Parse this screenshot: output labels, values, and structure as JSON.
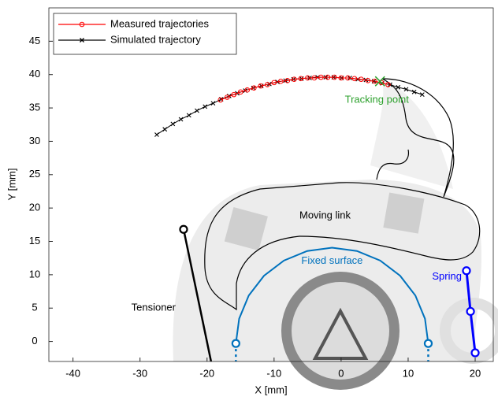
{
  "chart_data": {
    "type": "line",
    "xlabel": "X [mm]",
    "ylabel": "Y [mm]",
    "xlim": [
      -43.6,
      22.7
    ],
    "ylim": [
      -3,
      50
    ],
    "xticks": [
      -40,
      -30,
      -20,
      -10,
      0,
      10,
      20
    ],
    "yticks": [
      0,
      5,
      10,
      15,
      20,
      25,
      30,
      35,
      40,
      45
    ],
    "legend": "upper left",
    "series": [
      {
        "name": "Measured trajectories",
        "color": "#ff0000",
        "marker": "o",
        "x": [
          -18,
          -17,
          -16,
          -15,
          -14,
          -13,
          -12,
          -11,
          -10,
          -9,
          -8,
          -7,
          -6,
          -5,
          -4,
          -3,
          -2,
          -1,
          0,
          1,
          2,
          3,
          4,
          5,
          6,
          7
        ],
        "values": [
          36.2,
          36.6,
          37.0,
          37.4,
          37.7,
          38.0,
          38.3,
          38.5,
          38.8,
          39.0,
          39.1,
          39.3,
          39.4,
          39.5,
          39.5,
          39.6,
          39.6,
          39.6,
          39.5,
          39.5,
          39.4,
          39.3,
          39.1,
          39.0,
          38.8,
          38.5
        ]
      },
      {
        "name": "Simulated trajectory",
        "color": "#000000",
        "marker": "x",
        "x": [
          -27.5,
          -26.3,
          -25.1,
          -23.9,
          -22.7,
          -21.5,
          -20.3,
          -19.1,
          -17.9,
          -16.7,
          -15.5,
          -14.3,
          -13.1,
          -11.9,
          -10.7,
          -9.5,
          -8.3,
          -7.1,
          -5.9,
          -4.7,
          -3.5,
          -2.3,
          -1.1,
          0.1,
          1.3,
          2.5,
          3.7,
          4.9,
          6.1,
          7.3,
          8.5,
          9.7,
          10.9,
          12.1
        ],
        "values": [
          31.0,
          31.8,
          32.6,
          33.3,
          33.9,
          34.6,
          35.2,
          35.7,
          36.3,
          36.8,
          37.2,
          37.6,
          38.0,
          38.3,
          38.6,
          38.9,
          39.1,
          39.3,
          39.4,
          39.5,
          39.6,
          39.6,
          39.6,
          39.5,
          39.5,
          39.3,
          39.2,
          39.0,
          38.7,
          38.5,
          38.1,
          37.8,
          37.4,
          37.0
        ]
      }
    ],
    "tracking_point": {
      "label": "Tracking point",
      "color": "#2ca02c",
      "x": 5.8,
      "y": 39
    },
    "fixed_surface": {
      "label": "Fixed surface",
      "color": "#0072bd",
      "x": [
        -15.7,
        -15.21,
        -13.78,
        -11.5,
        -8.53,
        -5.06,
        -1.35,
        2.36,
        5.83,
        8.8,
        11.08,
        12.51,
        13.0
      ],
      "y": [
        -0.3,
        3.41,
        6.88,
        9.85,
        12.13,
        13.56,
        14.05,
        13.56,
        12.13,
        9.85,
        6.88,
        3.41,
        -0.3
      ]
    },
    "tensioner": {
      "label": "Tensioner",
      "color": "#000000",
      "x": [
        -23.5,
        -19.4
      ],
      "y": [
        16.8,
        -3
      ]
    },
    "spring": {
      "label": "Spring",
      "color": "#0000ff",
      "x": [
        18.7,
        19.3,
        20.0
      ],
      "y": [
        10.6,
        4.5,
        -1.7
      ]
    },
    "moving_link": {
      "label": "Moving link"
    }
  }
}
